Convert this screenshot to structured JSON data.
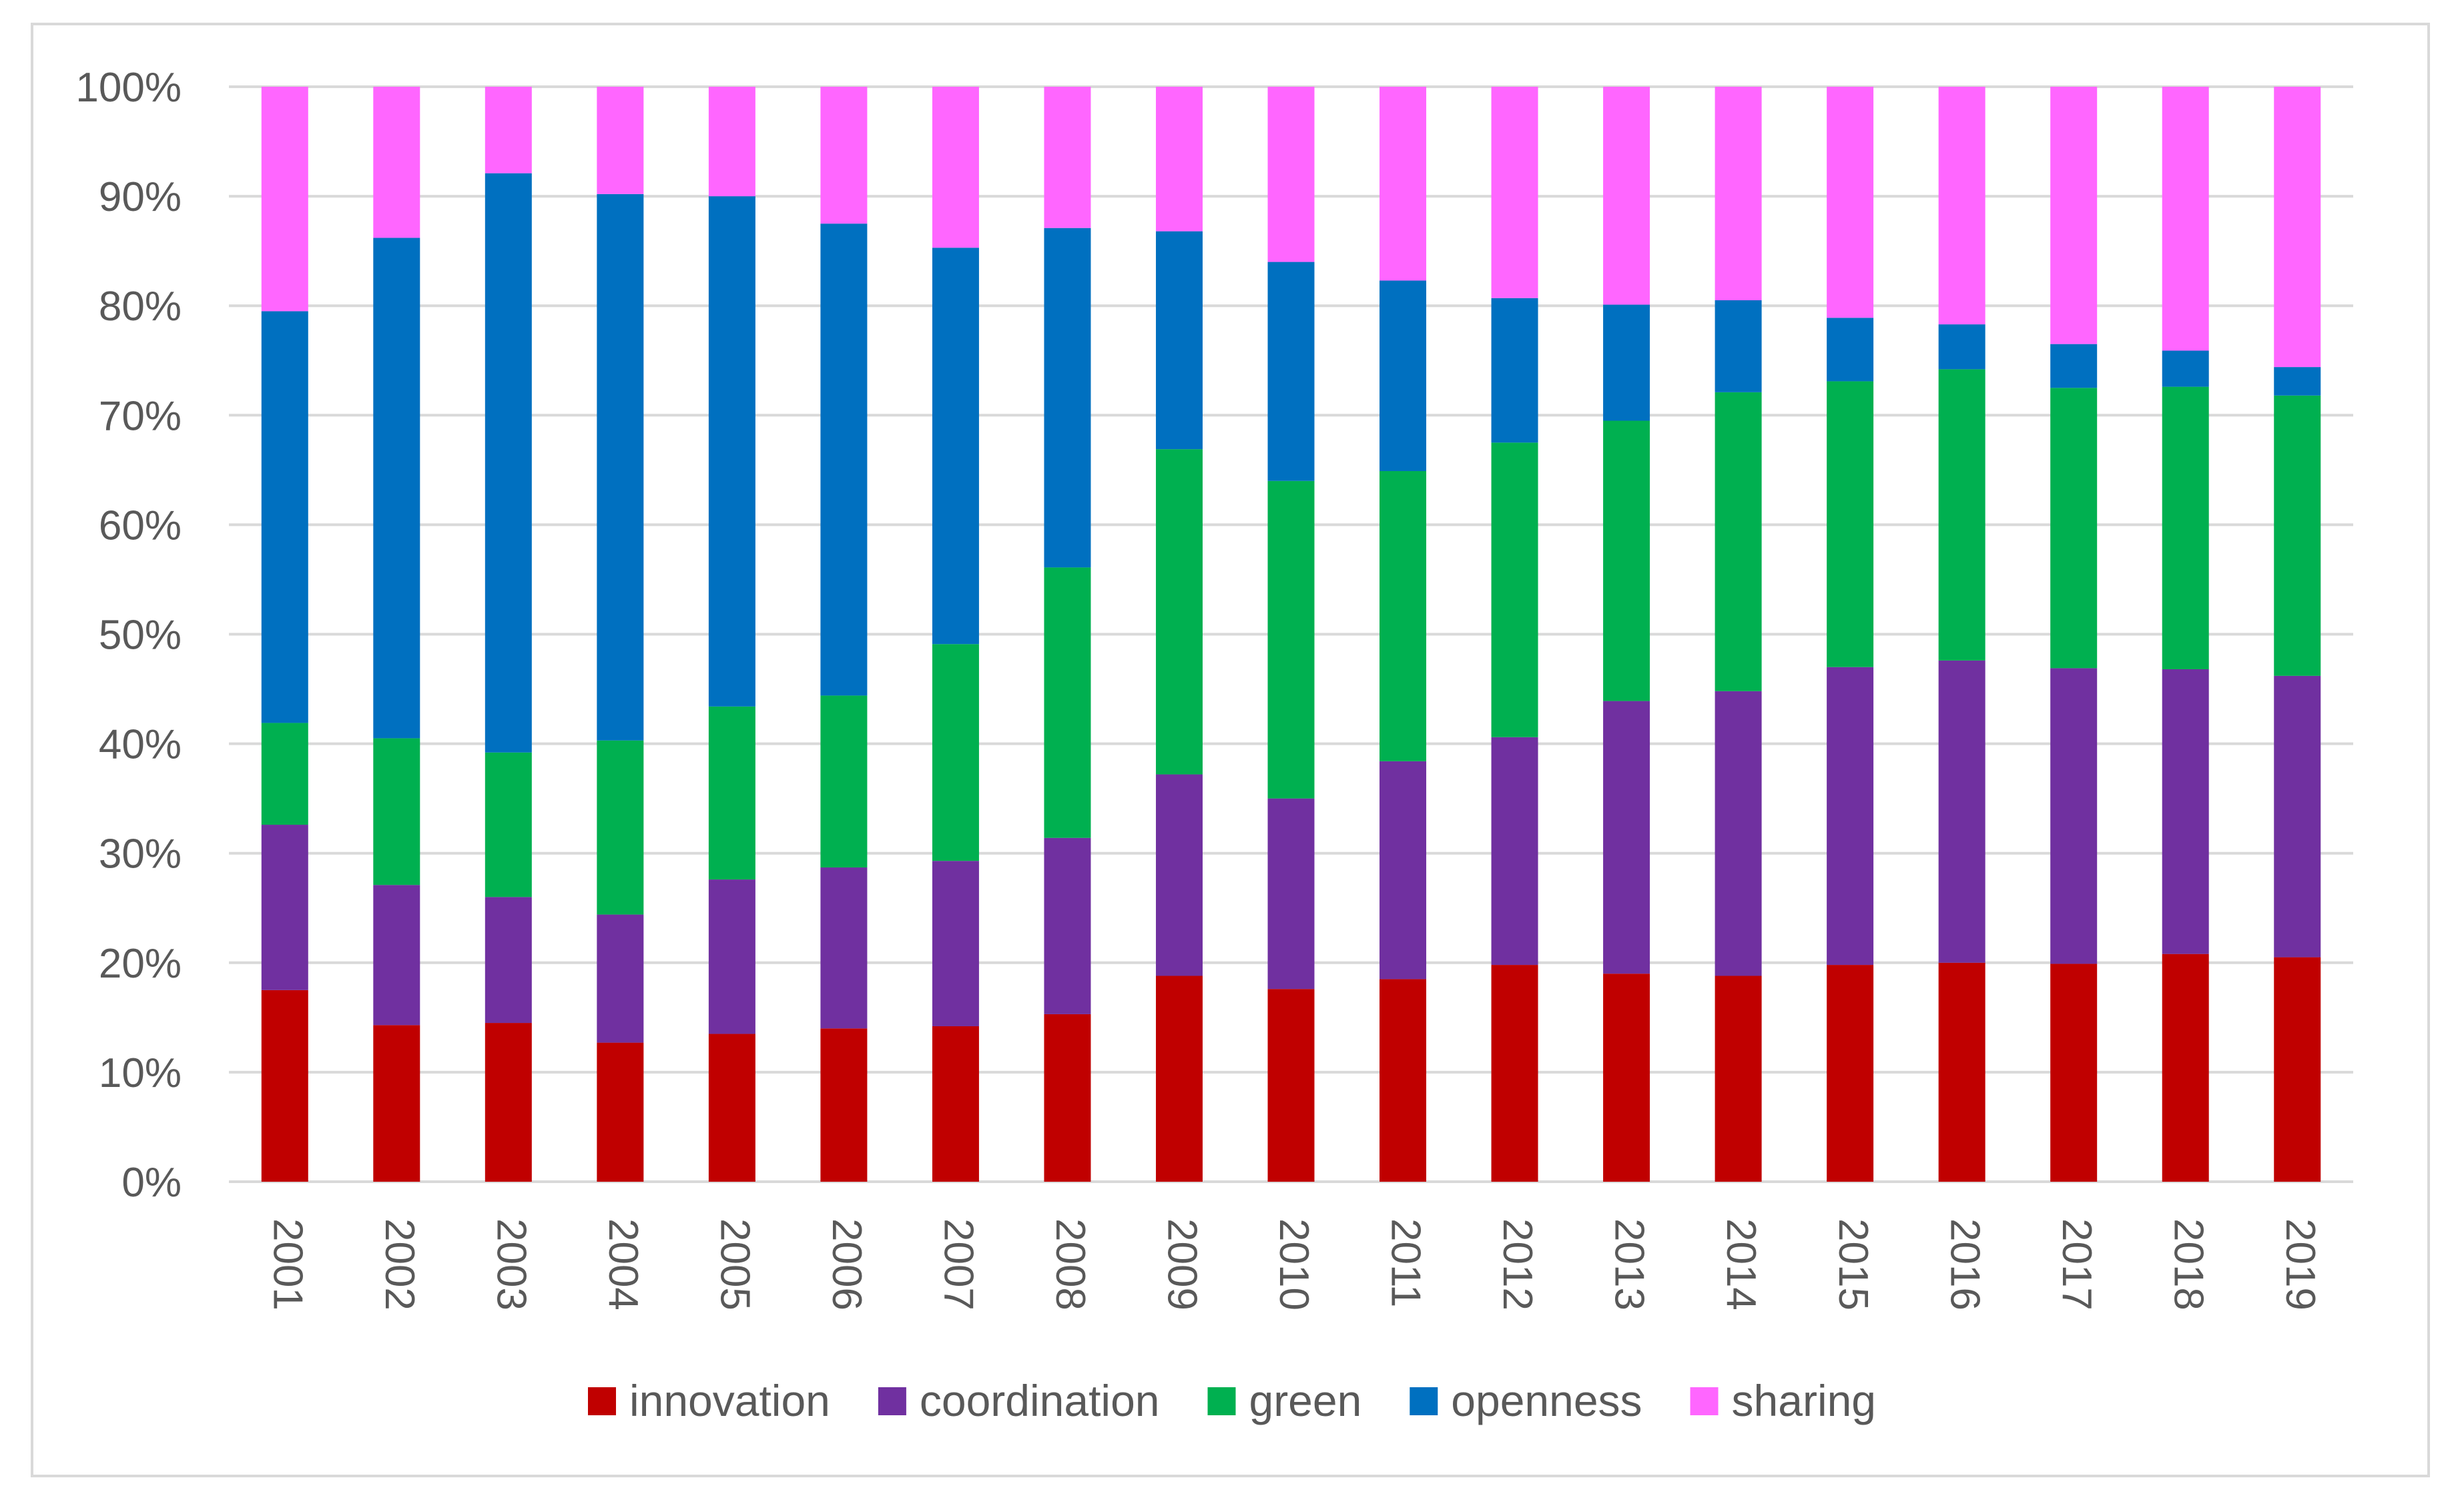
{
  "chart_data": {
    "type": "bar",
    "stacked": true,
    "normalized": true,
    "categories": [
      "2001",
      "2002",
      "2003",
      "2004",
      "2005",
      "2006",
      "2007",
      "2008",
      "2009",
      "2010",
      "2011",
      "2012",
      "2013",
      "2014",
      "2015",
      "2016",
      "2017",
      "2018",
      "2019"
    ],
    "series": [
      {
        "name": "innovation",
        "color": "#c00000",
        "values": [
          17.5,
          14.3,
          14.5,
          12.7,
          13.5,
          14.0,
          14.2,
          15.3,
          18.8,
          17.6,
          18.5,
          19.8,
          19.0,
          18.8,
          19.8,
          20.0,
          19.9,
          20.8,
          20.5
        ]
      },
      {
        "name": "coordination",
        "color": "#7030a0",
        "values": [
          15.1,
          12.8,
          11.5,
          11.7,
          14.1,
          14.7,
          15.1,
          16.1,
          18.4,
          17.4,
          19.9,
          20.8,
          24.9,
          26.0,
          27.2,
          27.6,
          27.0,
          26.0,
          25.7
        ]
      },
      {
        "name": "green",
        "color": "#00b050",
        "values": [
          9.3,
          13.4,
          13.2,
          15.9,
          15.8,
          15.7,
          19.8,
          24.7,
          29.7,
          29.0,
          26.5,
          26.9,
          25.6,
          27.3,
          26.1,
          26.6,
          25.6,
          25.8,
          25.6
        ]
      },
      {
        "name": "openness",
        "color": "#0070c0",
        "values": [
          37.6,
          45.7,
          52.9,
          49.9,
          46.6,
          43.1,
          36.2,
          31.0,
          19.9,
          20.0,
          17.4,
          13.2,
          10.6,
          8.4,
          5.8,
          4.1,
          4.0,
          3.3,
          2.6
        ]
      },
      {
        "name": "sharing",
        "color": "#ff66ff",
        "values": [
          20.5,
          13.8,
          7.9,
          9.8,
          10.0,
          12.5,
          14.7,
          12.9,
          13.2,
          16.0,
          17.7,
          19.3,
          19.9,
          19.5,
          21.1,
          21.7,
          23.5,
          24.1,
          25.6
        ]
      }
    ],
    "y_ticks": [
      "0%",
      "10%",
      "20%",
      "30%",
      "40%",
      "50%",
      "60%",
      "70%",
      "80%",
      "90%",
      "100%"
    ],
    "ylim": [
      0,
      100
    ],
    "grid": true,
    "legend_position": "bottom",
    "title": "",
    "xlabel": "",
    "ylabel": ""
  }
}
